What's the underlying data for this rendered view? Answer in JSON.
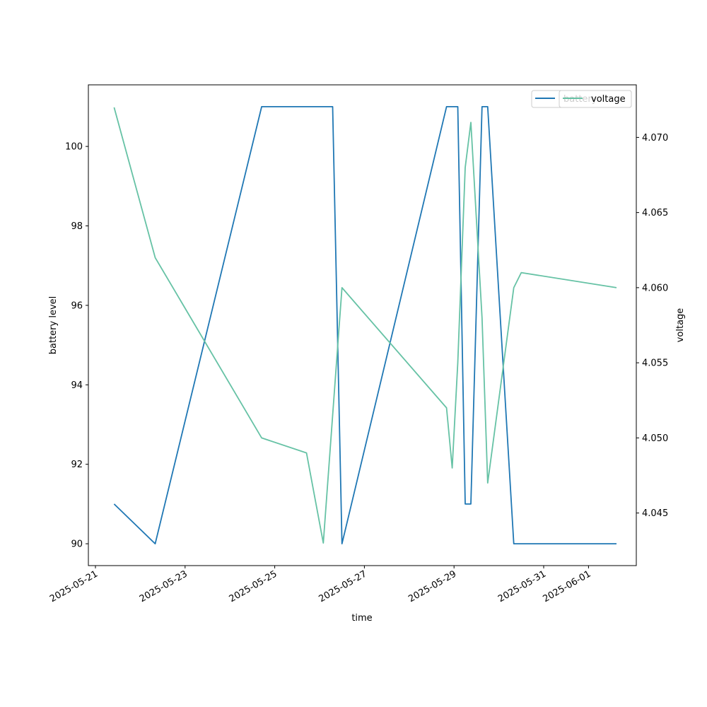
{
  "chart_data": {
    "type": "line",
    "xlabel": "time",
    "ylabel_left": "battery level",
    "ylabel_right": "voltage",
    "x_tick_labels": [
      "2025-05-21",
      "2025-05-23",
      "2025-05-25",
      "2025-05-27",
      "2025-05-29",
      "2025-05-31",
      "2025-06-01"
    ],
    "y_left_ticks": [
      90,
      92,
      94,
      96,
      98,
      100
    ],
    "y_right_ticks": [
      4.045,
      4.05,
      4.055,
      4.06,
      4.065,
      4.07
    ],
    "y_right_tick_labels": [
      "4.045",
      "4.050",
      "4.055",
      "4.060",
      "4.065",
      "4.070"
    ],
    "ylim_left": [
      89.45,
      101.55
    ],
    "ylim_right": [
      4.0415,
      4.0735
    ],
    "grid": false,
    "legend_placement": "top-right",
    "legends": [
      {
        "label": "battery",
        "color": "#1f77b4"
      },
      {
        "label": "voltage",
        "color": "#66c2a5"
      }
    ],
    "series": [
      {
        "name": "battery",
        "axis": "left",
        "color": "#1f77b4",
        "points": [
          [
            "2025-05-21T10:00",
            91
          ],
          [
            "2025-05-22T08:00",
            90
          ],
          [
            "2025-05-24T17:00",
            101
          ],
          [
            "2025-05-26T07:00",
            101
          ],
          [
            "2025-05-26T12:00",
            90
          ],
          [
            "2025-05-28T20:00",
            101
          ],
          [
            "2025-05-29T02:00",
            101
          ],
          [
            "2025-05-29T06:00",
            91
          ],
          [
            "2025-05-29T09:00",
            91
          ],
          [
            "2025-05-29T15:00",
            101
          ],
          [
            "2025-05-29T18:00",
            101
          ],
          [
            "2025-05-30T08:00",
            90
          ],
          [
            "2025-06-01T15:00",
            90
          ]
        ]
      },
      {
        "name": "voltage",
        "axis": "right",
        "color": "#66c2a5",
        "points": [
          [
            "2025-05-21T10:00",
            4.072
          ],
          [
            "2025-05-22T08:00",
            4.062
          ],
          [
            "2025-05-24T17:00",
            4.05
          ],
          [
            "2025-05-25T17:00",
            4.049
          ],
          [
            "2025-05-26T02:00",
            4.043
          ],
          [
            "2025-05-26T12:00",
            4.06
          ],
          [
            "2025-05-28T20:00",
            4.052
          ],
          [
            "2025-05-28T23:00",
            4.048
          ],
          [
            "2025-05-29T02:00",
            4.055
          ],
          [
            "2025-05-29T06:00",
            4.068
          ],
          [
            "2025-05-29T09:00",
            4.071
          ],
          [
            "2025-05-29T15:00",
            4.058
          ],
          [
            "2025-05-29T18:00",
            4.047
          ],
          [
            "2025-05-30T08:00",
            4.06
          ],
          [
            "2025-05-30T12:00",
            4.061
          ],
          [
            "2025-06-01T15:00",
            4.06
          ]
        ]
      }
    ]
  }
}
